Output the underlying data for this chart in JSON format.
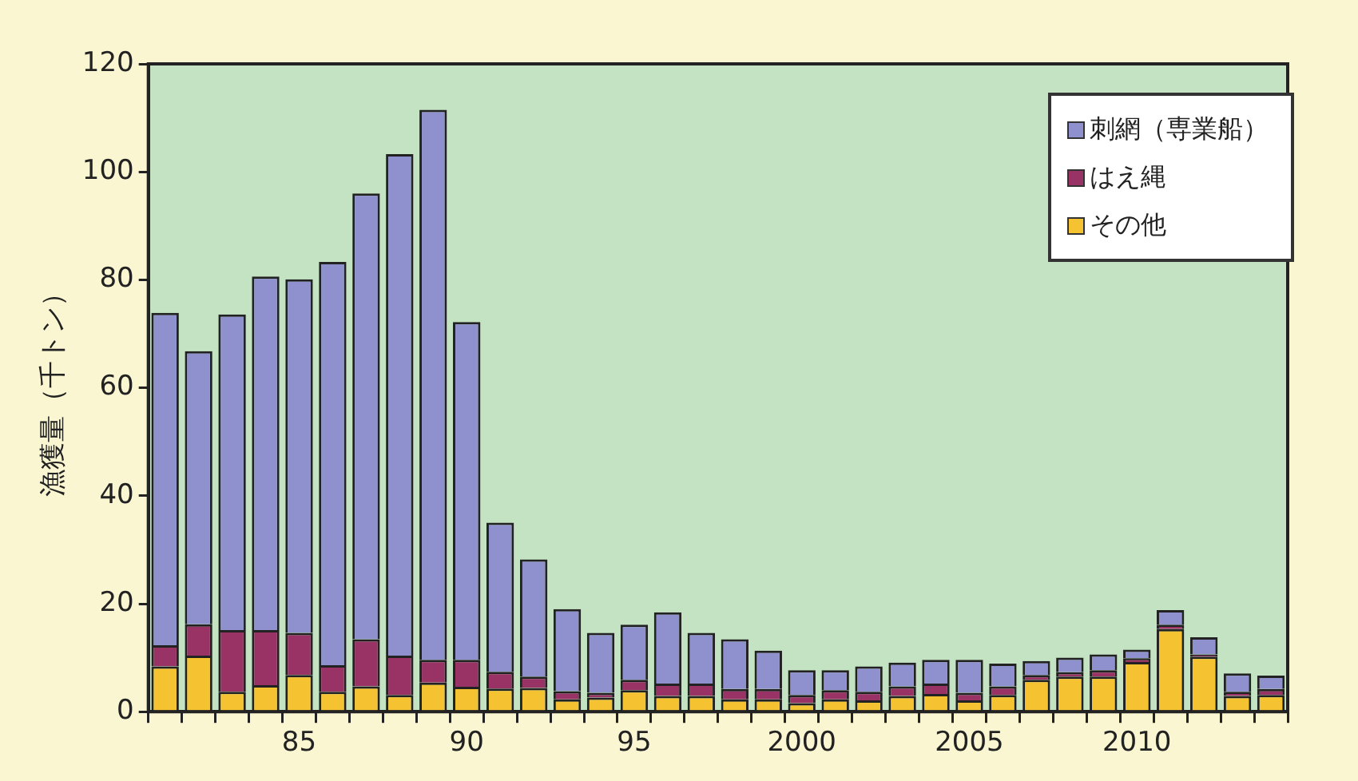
{
  "chart_data": {
    "type": "bar",
    "stacked": true,
    "ylabel": "漁獲量（千トン）",
    "categories": [
      null,
      null,
      null,
      null,
      "85",
      null,
      null,
      null,
      null,
      "90",
      null,
      null,
      null,
      null,
      "95",
      null,
      null,
      null,
      null,
      "2000",
      null,
      null,
      null,
      null,
      "2005",
      null,
      null,
      null,
      null,
      "2010",
      null,
      null,
      null,
      null
    ],
    "series": [
      {
        "name": "その他",
        "color": "#f5c232",
        "values": [
          8.4,
          10.4,
          3.7,
          4.9,
          6.8,
          3.7,
          4.7,
          3.1,
          5.4,
          4.6,
          4.3,
          4.4,
          2.3,
          2.6,
          4.0,
          2.9,
          2.9,
          2.3,
          2.3,
          1.6,
          2.3,
          2.1,
          2.9,
          3.3,
          2.1,
          3.1,
          5.9,
          6.5,
          6.5,
          9.2,
          15.3,
          10.2,
          2.9,
          3.1
        ]
      },
      {
        "name": "はえ縄",
        "color": "#993366",
        "values": [
          3.9,
          5.8,
          11.4,
          10.2,
          7.8,
          4.9,
          8.7,
          7.3,
          4.2,
          5.0,
          3.1,
          2.1,
          1.5,
          0.9,
          1.9,
          2.3,
          2.3,
          1.9,
          1.9,
          1.5,
          1.7,
          1.6,
          1.8,
          1.9,
          1.4,
          1.6,
          0.9,
          0.8,
          1.2,
          0.7,
          0.8,
          0.4,
          0.8,
          1.1
        ]
      },
      {
        "name": "刺網（専業船）",
        "color": "#8f91cf",
        "values": [
          61.6,
          50.6,
          58.5,
          65.5,
          65.5,
          74.7,
          82.6,
          92.9,
          101.9,
          62.6,
          27.6,
          21.7,
          15.2,
          11.1,
          10.2,
          13.2,
          9.4,
          9.2,
          7.1,
          4.6,
          3.7,
          4.7,
          4.4,
          4.4,
          6.1,
          4.2,
          2.6,
          2.7,
          2.9,
          1.6,
          2.7,
          3.2,
          3.4,
          2.5
        ]
      }
    ],
    "ylim": [
      0,
      120
    ],
    "yticks": [
      0,
      20,
      40,
      60,
      80,
      100,
      120
    ],
    "legend": "top right"
  }
}
